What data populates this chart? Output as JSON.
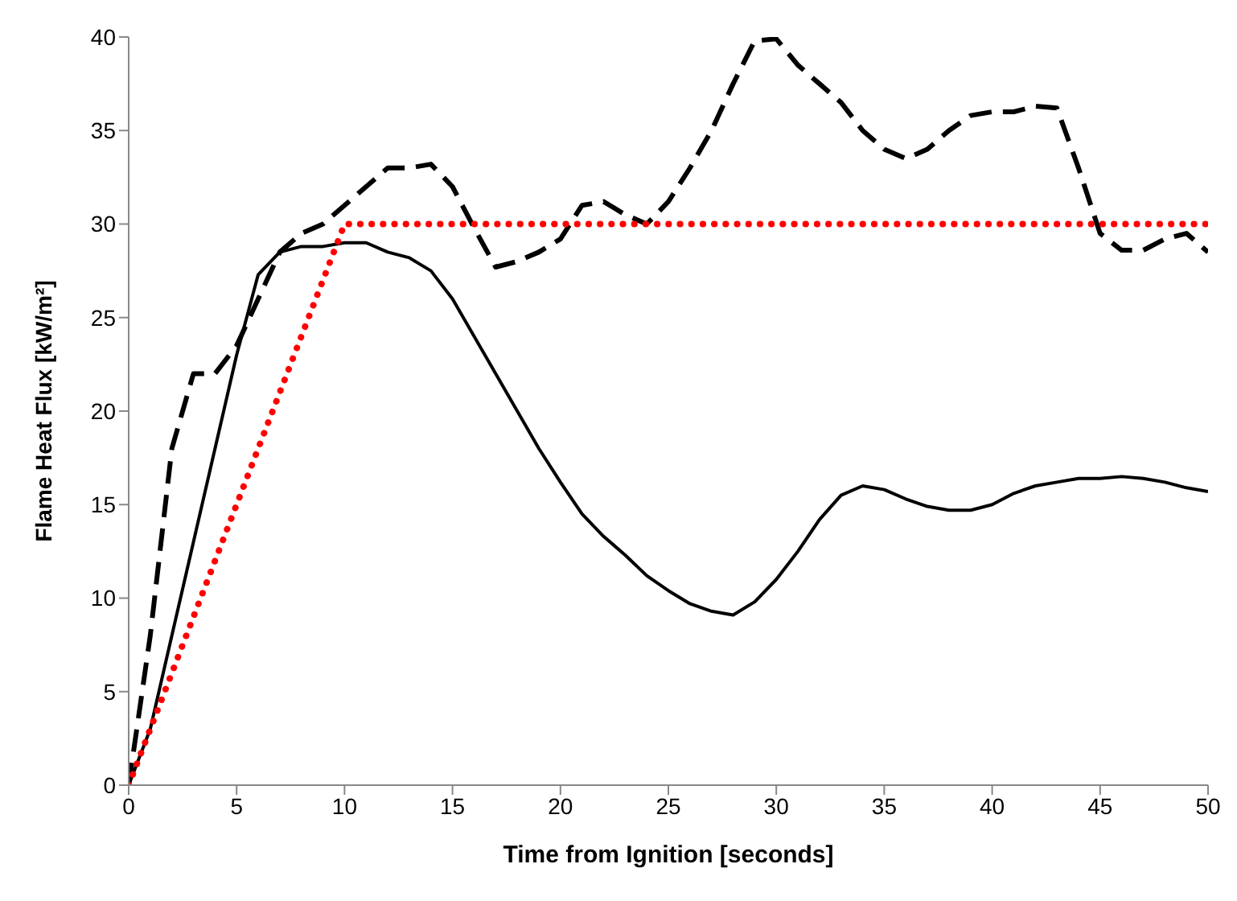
{
  "chart_data": {
    "type": "line",
    "xlabel": "Time from Ignition [seconds]",
    "ylabel": "Flame Heat Flux [kW/m²]",
    "xlim": [
      0,
      50
    ],
    "xticks": [
      0,
      5,
      10,
      15,
      20,
      25,
      30,
      35,
      40,
      45,
      50
    ],
    "ylim": [
      0,
      40
    ],
    "yticks": [
      0,
      5,
      10,
      15,
      20,
      25,
      30,
      35,
      40
    ],
    "grid": false,
    "legend": false,
    "marker": "none",
    "series": [
      {
        "color": "#000000",
        "line_style": "solid",
        "x": [
          0,
          1,
          2,
          3,
          4,
          5,
          6,
          7,
          8,
          9,
          10,
          11,
          12,
          13,
          14,
          15,
          16,
          17,
          18,
          19,
          20,
          21,
          22,
          23,
          24,
          25,
          26,
          27,
          28,
          29,
          30,
          31,
          32,
          33,
          34,
          35,
          36,
          37,
          38,
          39,
          40,
          41,
          42,
          43,
          44,
          45,
          46,
          47,
          48,
          49,
          50
        ],
        "values": [
          0,
          3,
          8,
          13,
          18,
          23,
          27.3,
          28.5,
          28.8,
          28.8,
          29,
          29,
          28.5,
          28.2,
          27.5,
          26,
          24,
          22,
          20,
          18,
          16.2,
          14.5,
          13.3,
          12.3,
          11.2,
          10.4,
          9.7,
          9.3,
          9.1,
          9.8,
          11,
          12.5,
          14.2,
          15.5,
          16,
          15.8,
          15.3,
          14.9,
          14.7,
          14.7,
          15,
          15.6,
          16,
          16.2,
          16.4,
          16.4,
          16.5,
          16.4,
          16.2,
          15.9,
          15.7
        ]
      },
      {
        "color": "#000000",
        "line_style": "dashed",
        "x": [
          0,
          1,
          2,
          3,
          4,
          5,
          6,
          7,
          8,
          9,
          10,
          11,
          12,
          13,
          14,
          15,
          16,
          17,
          18,
          19,
          20,
          21,
          22,
          23,
          24,
          25,
          26,
          27,
          28,
          29,
          30,
          31,
          32,
          33,
          34,
          35,
          36,
          37,
          38,
          39,
          40,
          41,
          42,
          43,
          44,
          45,
          46,
          47,
          48,
          49,
          50
        ],
        "values": [
          0,
          8,
          18,
          22,
          22,
          23.5,
          26,
          28.5,
          29.5,
          30,
          31,
          32,
          33,
          33,
          33.2,
          32,
          29.8,
          27.7,
          28,
          28.5,
          29.2,
          31,
          31.2,
          30.5,
          30,
          31.2,
          33,
          35,
          37.5,
          39.8,
          39.9,
          38.5,
          37.5,
          36.5,
          35,
          34,
          33.5,
          34,
          35,
          35.8,
          36,
          36,
          36.3,
          36.2,
          33,
          29.5,
          28.6,
          28.6,
          29.2,
          29.5,
          28.5
        ]
      },
      {
        "color": "#ff0000",
        "line_style": "dotted",
        "x": [
          0,
          10,
          50
        ],
        "values": [
          0,
          30,
          30
        ]
      }
    ]
  }
}
